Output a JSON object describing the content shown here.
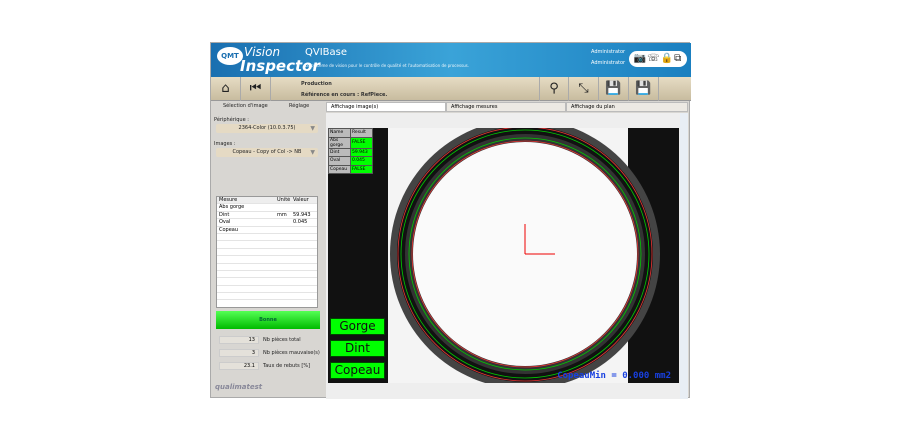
{
  "header": {
    "logo": "QMT",
    "brand1": "Vision",
    "brand2": "Inspector",
    "app": "QVIBase",
    "tagline": "Le système de vision pour le contrôle de qualité et l'automatisation de processus.",
    "user1": "Administrator",
    "user2": "Administrator",
    "icons": [
      "camera-icon",
      "connection-icon",
      "lock-icon",
      "exit-icon"
    ]
  },
  "toolbar": {
    "mode": "Production",
    "reference": "Référence en cours : RefPiece.",
    "icons": [
      "home-icon",
      "rewind-icon",
      "search-icon",
      "resize-icon",
      "save-icon",
      "save-image-icon"
    ]
  },
  "left": {
    "tabs": [
      "Sélection d'image",
      "Réglage"
    ],
    "peripheral_label": "Périphérique :",
    "peripheral_value": "2364-Color (10.0.3.75)",
    "images_label": "Images :",
    "images_value": "Copeau - Copy of Col -> NB",
    "table": {
      "headers": [
        "Mesure",
        "Unité",
        "Valeur"
      ],
      "rows": [
        [
          "Abs gorge",
          "",
          ""
        ],
        [
          "Dint",
          "mm",
          "59.943"
        ],
        [
          "Oval",
          "",
          "0.045"
        ],
        [
          "Copeau",
          "",
          ""
        ]
      ]
    },
    "status": "Bonne",
    "status_color": "#00cc00",
    "stats": [
      {
        "value": "13",
        "label": "Nb pièces total"
      },
      {
        "value": "3",
        "label": "Nb pièces mauvaise(s)"
      },
      {
        "value": "23.1",
        "label": "Taux de rebuts [%]"
      }
    ],
    "footer_logo": "qualimatest"
  },
  "main": {
    "tabs": [
      "Affichage image(s)",
      "Affichage mesures",
      "Affichage du plan"
    ],
    "results": {
      "headers": [
        "Name",
        "Result"
      ],
      "rows": [
        [
          "Abs gorge",
          "FALSE"
        ],
        [
          "Dint",
          "59.943"
        ],
        [
          "Oval",
          "0.045"
        ],
        [
          "Copeau",
          "FALSE"
        ]
      ]
    },
    "buttons": [
      "Gorge",
      "Dint",
      "Copeau"
    ],
    "overlay": "CopeauMin = 0.000 mm2"
  }
}
